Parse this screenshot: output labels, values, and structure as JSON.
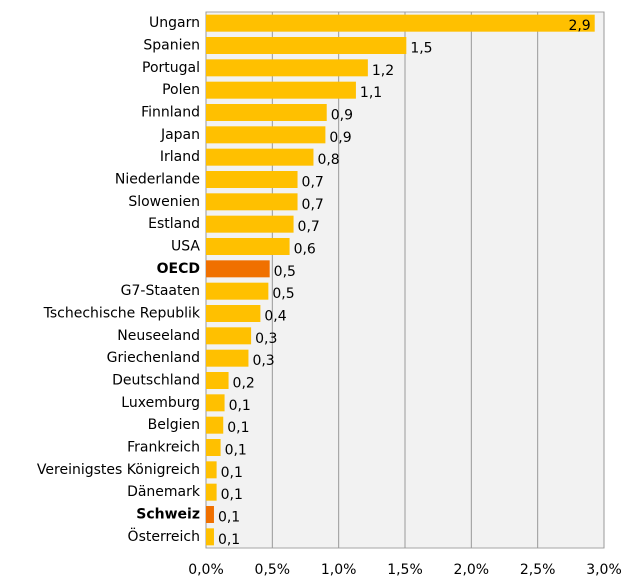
{
  "chart_data": {
    "type": "bar",
    "orientation": "horizontal",
    "categories": [
      "Ungarn",
      "Spanien",
      "Portugal",
      "Polen",
      "Finnland",
      "Japan",
      "Irland",
      "Niederlande",
      "Slowenien",
      "Estland",
      "USA",
      "OECD",
      "G7-Staaten",
      "Tschechische Republik",
      "Neuseeland",
      "Griechenland",
      "Deutschland",
      "Luxemburg",
      "Belgien",
      "Frankreich",
      "Vereinigstes Königreich",
      "Dänemark",
      "Schweiz",
      "Österreich"
    ],
    "values": [
      2.93,
      1.51,
      1.22,
      1.13,
      0.91,
      0.9,
      0.81,
      0.69,
      0.69,
      0.66,
      0.63,
      0.48,
      0.47,
      0.41,
      0.34,
      0.32,
      0.17,
      0.14,
      0.13,
      0.11,
      0.08,
      0.08,
      0.06,
      0.06
    ],
    "value_labels": [
      "2,9",
      "1,5",
      "1,2",
      "1,1",
      "0,9",
      "0,9",
      "0,8",
      "0,7",
      "0,7",
      "0,7",
      "0,6",
      "0,5",
      "0,5",
      "0,4",
      "0,3",
      "0,3",
      "0,2",
      "0,1",
      "0,1",
      "0,1",
      "0,1",
      "0,1",
      "0,1",
      "0,1"
    ],
    "colors": [
      "#ffc000",
      "#ffc000",
      "#ffc000",
      "#ffc000",
      "#ffc000",
      "#ffc000",
      "#ffc000",
      "#ffc000",
      "#ffc000",
      "#ffc000",
      "#ffc000",
      "#f07000",
      "#ffc000",
      "#ffc000",
      "#ffc000",
      "#ffc000",
      "#ffc000",
      "#ffc000",
      "#ffc000",
      "#ffc000",
      "#ffc000",
      "#ffc000",
      "#f07000",
      "#ffc000"
    ],
    "bold": [
      11,
      22
    ],
    "xlim": [
      0,
      3
    ],
    "xticks": [
      {
        "value": 0,
        "label": "0,0%"
      },
      {
        "value": 0.5,
        "label": "0,5%"
      },
      {
        "value": 1,
        "label": "1,0%"
      },
      {
        "value": 1.5,
        "label": "1,5%"
      },
      {
        "value": 2,
        "label": "2,0%"
      },
      {
        "value": 2.5,
        "label": "2,5%"
      },
      {
        "value": 3,
        "label": "3,0%"
      }
    ],
    "grid": true
  }
}
